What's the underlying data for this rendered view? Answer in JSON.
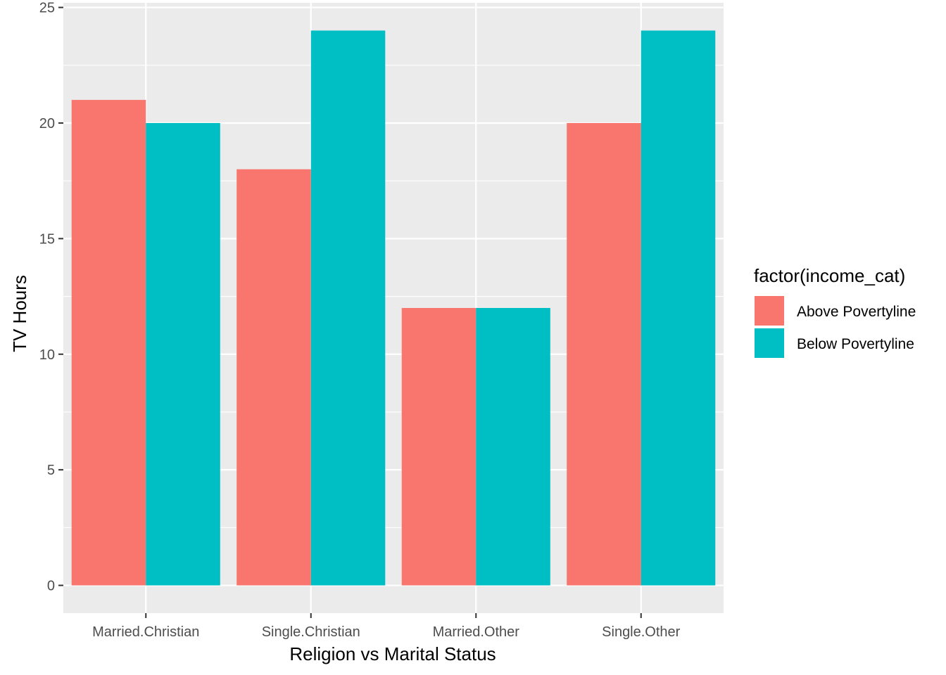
{
  "chart_data": {
    "type": "bar",
    "title": "",
    "xlabel": "Religion vs Marital Status",
    "ylabel": "TV Hours",
    "categories": [
      "Married.Christian",
      "Single.Christian",
      "Married.Other",
      "Single.Other"
    ],
    "series": [
      {
        "name": "Above Povertyline",
        "color": "#F8766D",
        "values": [
          21,
          18,
          12,
          20
        ]
      },
      {
        "name": "Below Povertyline",
        "color": "#00BFC4",
        "values": [
          20,
          24,
          12,
          24
        ]
      }
    ],
    "ylim": [
      -1.2,
      25.2
    ],
    "yticks": [
      0,
      5,
      10,
      15,
      20,
      25
    ],
    "grid": true,
    "legend": {
      "title": "factor(income_cat)",
      "placement": "right"
    },
    "colors": {
      "panel": "#EBEBEB",
      "grid": "#FFFFFF",
      "tick_text": "#4D4D4D",
      "tick_mark": "#333333"
    }
  }
}
